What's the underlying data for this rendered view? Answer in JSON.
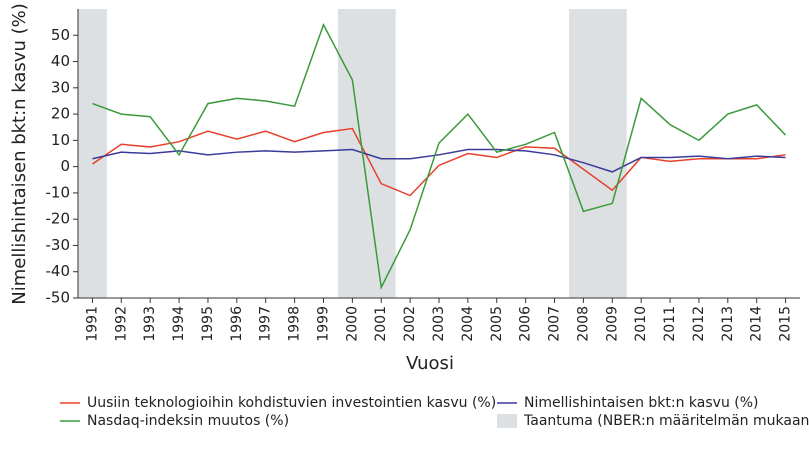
{
  "chart_data": {
    "type": "line",
    "y_label": "Nimellishintaisen bkt:n kasvu (%)",
    "x_label": "Vuosi",
    "x": [
      1991,
      1992,
      1993,
      1994,
      1995,
      1996,
      1997,
      1998,
      1999,
      2000,
      2001,
      2002,
      2003,
      2004,
      2005,
      2006,
      2007,
      2008,
      2009,
      2010,
      2011,
      2012,
      2013,
      2014,
      2015
    ],
    "series": [
      {
        "name": "Uusiin teknologioihin kohdistuvien investointien kasvu (%)",
        "color": "#e8402a",
        "values": [
          1,
          8.5,
          7.5,
          9.5,
          13.5,
          10.5,
          13.5,
          9.5,
          13,
          14.5,
          -6.5,
          -11,
          0.5,
          5,
          3.5,
          7.5,
          7,
          -1,
          -9,
          3.5,
          2,
          3,
          3,
          3,
          4.5
        ]
      },
      {
        "name": "Nimellishintaisen bkt:n kasvu (%)",
        "color": "#3a3a9a",
        "values": [
          3,
          5.5,
          5,
          6,
          4.5,
          5.5,
          6,
          5.5,
          6,
          6.5,
          3,
          3,
          4.5,
          6.5,
          6.5,
          6,
          4.5,
          1.5,
          -2,
          3.5,
          3.5,
          4,
          3,
          4,
          3.5
        ]
      },
      {
        "name": "Nasdaq-indeksin muutos (%)",
        "color": "#3a9a3a",
        "values": [
          24,
          20,
          19,
          4.5,
          24,
          26,
          25,
          23,
          54,
          33,
          -46,
          -24,
          9,
          20,
          5.5,
          8.5,
          13,
          -17,
          -14,
          26,
          16,
          10,
          20,
          23.5,
          12
        ]
      }
    ],
    "recessions": [
      {
        "start": 1991,
        "end": 1991
      },
      {
        "start": 2000,
        "end": 2001
      },
      {
        "start": 2008,
        "end": 2009
      }
    ],
    "recession_label": "Taantuma (NBER:n määritelmän mukaan)",
    "recession_color": "#dde0e3",
    "xlim": [
      1990.5,
      2015.5
    ],
    "xticks": [
      1991,
      1992,
      1993,
      1994,
      1995,
      1996,
      1997,
      1998,
      1999,
      2000,
      2001,
      2002,
      2003,
      2004,
      2005,
      2006,
      2007,
      2008,
      2009,
      2010,
      2011,
      2012,
      2013,
      2014,
      2015
    ],
    "ylim": [
      -50,
      60
    ],
    "yticks": [
      -50,
      -40,
      -30,
      -20,
      -10,
      0,
      10,
      20,
      30,
      40,
      50
    ]
  }
}
